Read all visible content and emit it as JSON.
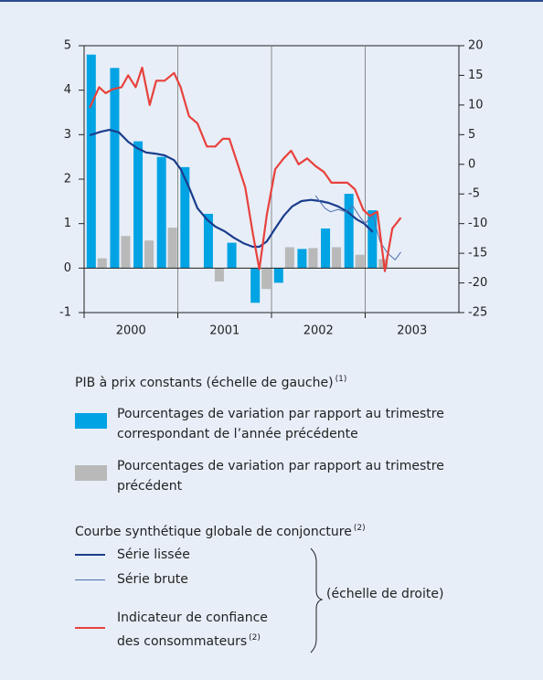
{
  "chart_data": {
    "type": "bar",
    "categories": [
      null,
      null,
      null,
      null,
      null,
      null,
      null,
      null,
      null,
      null,
      null,
      null,
      null
    ],
    "xlim": [
      2000,
      2004
    ],
    "xticks": [
      2000,
      2001,
      2002,
      2003
    ],
    "ylim": [
      -1,
      5
    ],
    "yticks": [
      -1,
      0,
      1,
      2,
      3,
      4,
      5
    ],
    "y2lim": [
      -25,
      20
    ],
    "y2ticks": [
      -25,
      -20,
      -15,
      -10,
      -5,
      0,
      5,
      10,
      15,
      20
    ],
    "left_group": {
      "label": "PIB à prix constants (échelle de gauche)",
      "note": "(1)"
    },
    "right_group": {
      "label": "Courbe synthétique globale de conjoncture",
      "note": "(2)"
    },
    "right_scale_label": "(échelle de droite)",
    "series": [
      {
        "name": "Pourcentages de variation par rapport au trimestre correspondant de l’année précédente",
        "type": "bar",
        "color": "#00a3e3",
        "values": [
          4.8,
          4.5,
          2.85,
          2.5,
          2.27,
          1.22,
          0.57,
          -0.78,
          -0.33,
          0.43,
          0.89,
          1.67,
          1.3
        ]
      },
      {
        "name": "Pourcentages de variation par rapport au trimestre précédent",
        "type": "bar",
        "color": "#b9b9b9",
        "values": [
          0.22,
          0.72,
          0.62,
          0.91,
          0.0,
          -0.3,
          0.0,
          -0.47,
          0.47,
          0.45,
          0.47,
          0.3,
          0.2
        ]
      },
      {
        "name": "Série lissée",
        "type": "line",
        "axis": "y2",
        "color": "#1a3d8c",
        "width": 2.2,
        "x": [
          2000.06,
          2000.18,
          2000.27,
          2000.37,
          2000.47,
          2000.57,
          2000.66,
          2000.76,
          2000.86,
          2000.96,
          2001.03,
          2001.12,
          2001.21,
          2001.31,
          2001.4,
          2001.5,
          2001.6,
          2001.7,
          2001.8,
          2001.87,
          2001.95,
          2002.04,
          2002.13,
          2002.22,
          2002.32,
          2002.42,
          2002.52,
          2002.61,
          2002.71,
          2002.81,
          2002.91,
          2002.99,
          2003.08
        ],
        "values": [
          4.9,
          5.5,
          5.8,
          5.4,
          3.8,
          2.7,
          2.0,
          1.8,
          1.5,
          0.7,
          -0.8,
          -3.9,
          -7.4,
          -9.3,
          -10.5,
          -11.3,
          -12.4,
          -13.3,
          -13.9,
          -13.9,
          -13,
          -10.8,
          -8.7,
          -7.1,
          -6.2,
          -6.0,
          -6.2,
          -6.5,
          -7.1,
          -8.0,
          -9.3,
          -10.0,
          -11.4
        ]
      },
      {
        "name": "Série brute",
        "type": "line",
        "axis": "y2",
        "color": "#4f6fb0",
        "width": 1,
        "x": [
          2002.47,
          2002.57,
          2002.63,
          2002.71,
          2002.79,
          2002.87,
          2002.94,
          2003.0,
          2003.08,
          2003.16,
          2003.24,
          2003.32,
          2003.38
        ],
        "values": [
          -5.3,
          -7.4,
          -8.0,
          -7.6,
          -8.0,
          -7.1,
          -8.8,
          -10.0,
          -8.5,
          -13.1,
          -15,
          -16.1,
          -14.8
        ]
      },
      {
        "name": "Indicateur de confiance des consommateurs",
        "note": "(2)",
        "type": "line",
        "axis": "y2",
        "color": "#e8413c",
        "width": 2.2,
        "x": [
          2000.06,
          2000.16,
          2000.23,
          2000.31,
          2000.4,
          2000.47,
          2000.55,
          2000.62,
          2000.7,
          2000.77,
          2000.86,
          2000.96,
          2001.03,
          2001.12,
          2001.21,
          2001.31,
          2001.4,
          2001.48,
          2001.55,
          2001.64,
          2001.72,
          2001.8,
          2001.87,
          2001.95,
          2002.04,
          2002.13,
          2002.21,
          2002.29,
          2002.38,
          2002.47,
          2002.56,
          2002.64,
          2002.73,
          2002.81,
          2002.89,
          2002.98,
          2003.05,
          2003.13,
          2003.21,
          2003.29,
          2003.38
        ],
        "values": [
          9.5,
          13,
          12,
          12.7,
          13,
          15,
          13,
          16.3,
          10,
          14.1,
          14.1,
          15.4,
          13,
          8.1,
          6.9,
          3,
          3,
          4.3,
          4.3,
          0,
          -3.9,
          -11.6,
          -17.7,
          -8.5,
          -0.8,
          1.0,
          2.3,
          0,
          1,
          -0.3,
          -1.3,
          -3.1,
          -3.1,
          -3.1,
          -4.2,
          -7.7,
          -8.7,
          -8.0,
          -18,
          -10.8,
          -9
        ]
      }
    ]
  }
}
